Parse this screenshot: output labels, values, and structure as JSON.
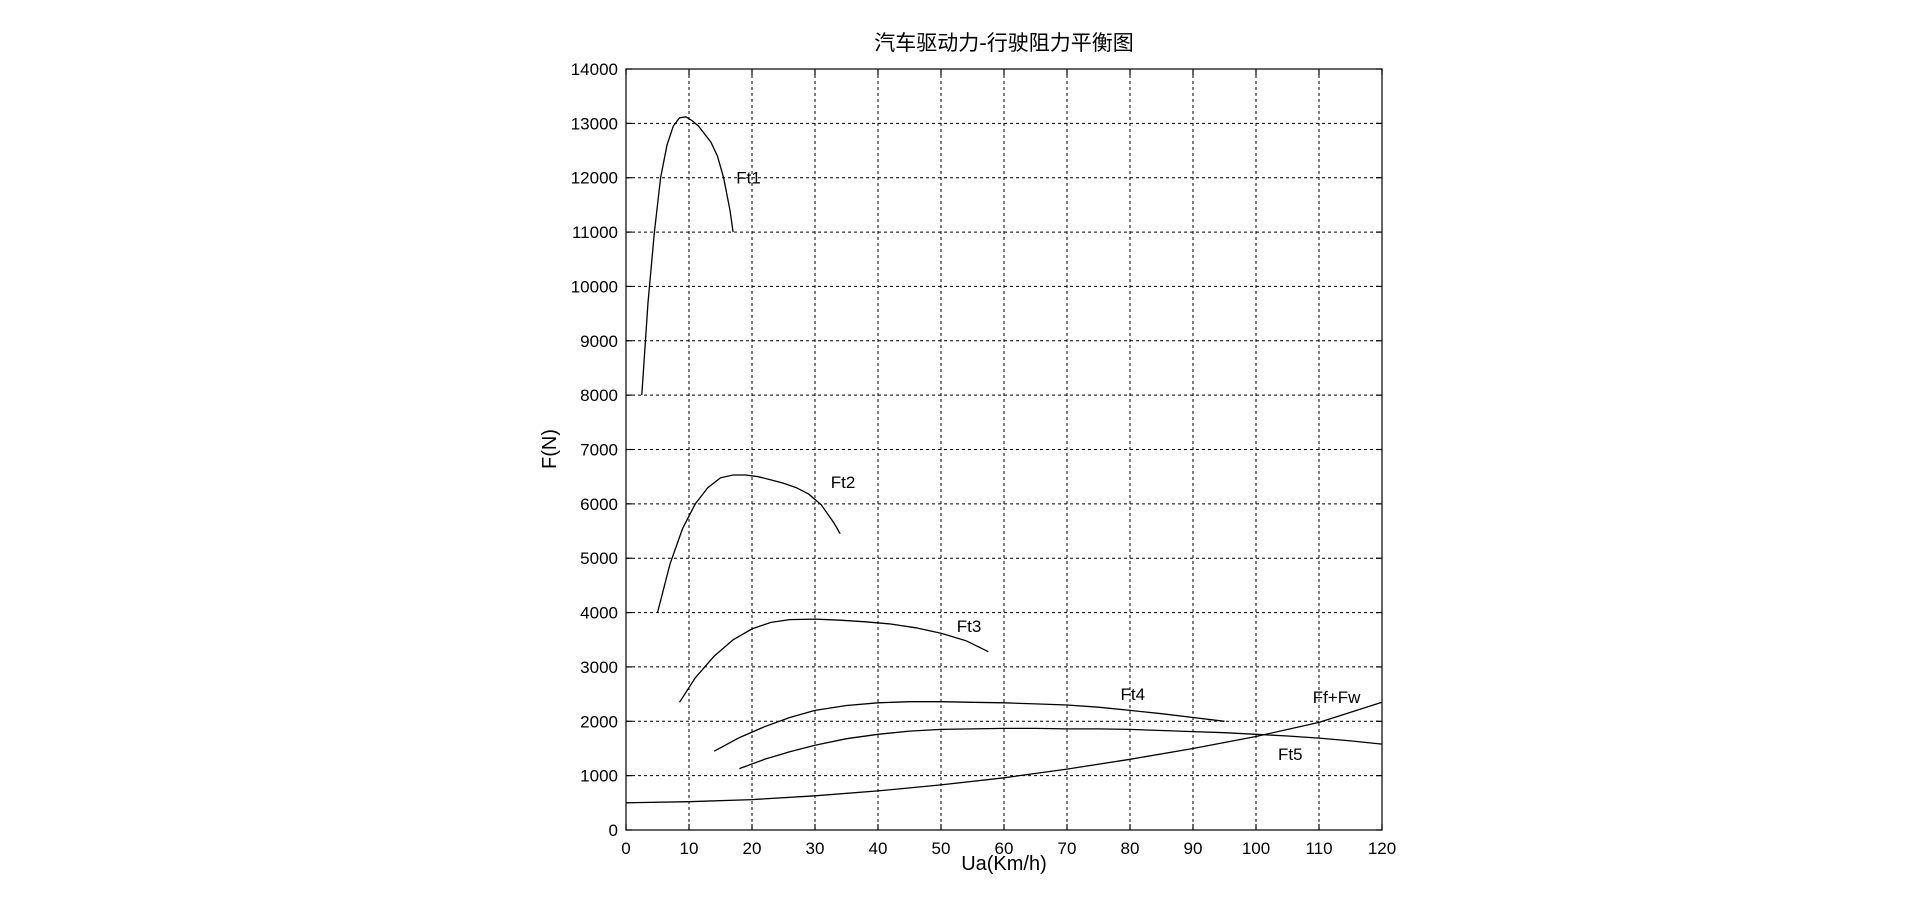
{
  "chart_data": {
    "type": "line",
    "title": "汽车驱动力-行驶阻力平衡图",
    "xlabel": "Ua(Km/h)",
    "ylabel": "F(N)",
    "xlim": [
      0,
      120
    ],
    "ylim": [
      0,
      14000
    ],
    "xticks": [
      0,
      10,
      20,
      30,
      40,
      50,
      60,
      70,
      80,
      90,
      100,
      110,
      120
    ],
    "yticks": [
      0,
      1000,
      2000,
      3000,
      4000,
      5000,
      6000,
      7000,
      8000,
      9000,
      10000,
      11000,
      12000,
      13000,
      14000
    ],
    "grid": true,
    "series": [
      {
        "name": "Ft1",
        "label_at": [
          17.5,
          12000
        ],
        "x": [
          2.5,
          3.5,
          4.5,
          5.5,
          6.5,
          7.5,
          8.5,
          9.5,
          10.5,
          11.5,
          12.5,
          13.5,
          14.5,
          15.5,
          16.5,
          17.0
        ],
        "y": [
          8000,
          9700,
          11000,
          12000,
          12600,
          12950,
          13100,
          13120,
          13050,
          12950,
          12800,
          12650,
          12400,
          12000,
          11400,
          11000
        ]
      },
      {
        "name": "Ft2",
        "label_at": [
          32.5,
          6400
        ],
        "x": [
          5.0,
          7.0,
          9.0,
          11.0,
          13.0,
          15.0,
          17.0,
          19.0,
          21.0,
          23.0,
          25.0,
          27.0,
          29.0,
          31.0,
          33.0,
          34.0
        ],
        "y": [
          4000,
          4900,
          5550,
          6000,
          6300,
          6480,
          6530,
          6530,
          6500,
          6440,
          6380,
          6300,
          6180,
          5980,
          5650,
          5450
        ]
      },
      {
        "name": "Ft3",
        "label_at": [
          52.5,
          3750
        ],
        "x": [
          8.5,
          11,
          14,
          17,
          20,
          23,
          26,
          30,
          34,
          38,
          42,
          46,
          50,
          54,
          57.5
        ],
        "y": [
          2350,
          2800,
          3200,
          3500,
          3700,
          3820,
          3870,
          3880,
          3860,
          3830,
          3790,
          3720,
          3620,
          3480,
          3280
        ]
      },
      {
        "name": "Ft4",
        "label_at": [
          78.5,
          2500
        ],
        "x": [
          14,
          18,
          22,
          26,
          30,
          35,
          40,
          45,
          50,
          55,
          60,
          65,
          70,
          75,
          80,
          85,
          90,
          95
        ],
        "y": [
          1450,
          1700,
          1900,
          2070,
          2200,
          2290,
          2340,
          2360,
          2360,
          2350,
          2340,
          2320,
          2300,
          2260,
          2200,
          2140,
          2070,
          2000
        ]
      },
      {
        "name": "Ft5",
        "label_at": [
          103.5,
          1400
        ],
        "x": [
          18,
          22,
          26,
          30,
          35,
          40,
          45,
          50,
          55,
          60,
          65,
          70,
          75,
          80,
          85,
          90,
          95,
          100,
          105,
          110,
          115,
          120
        ],
        "y": [
          1130,
          1300,
          1440,
          1560,
          1680,
          1760,
          1820,
          1850,
          1860,
          1870,
          1870,
          1860,
          1860,
          1850,
          1830,
          1810,
          1790,
          1760,
          1730,
          1690,
          1640,
          1580
        ]
      },
      {
        "name": "Ff+Fw",
        "label_at": [
          109,
          2450
        ],
        "x": [
          0,
          10,
          20,
          30,
          40,
          50,
          60,
          70,
          80,
          90,
          100,
          110,
          120
        ],
        "y": [
          500,
          520,
          560,
          630,
          720,
          830,
          960,
          1120,
          1300,
          1500,
          1720,
          1980,
          2350
        ]
      }
    ]
  }
}
